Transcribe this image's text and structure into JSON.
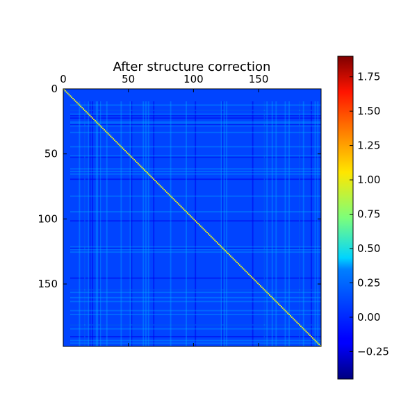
{
  "chart_data": {
    "type": "heatmap",
    "title": "After structure correction",
    "x_ticks": [
      0,
      50,
      100,
      150
    ],
    "y_ticks": [
      0,
      50,
      100,
      150
    ],
    "x_tick_labels": [
      "0",
      "50",
      "100",
      "150"
    ],
    "y_tick_labels": [
      "0",
      "50",
      "100",
      "150"
    ],
    "x_axis_position": "top",
    "xlim": [
      0,
      198
    ],
    "ylim": [
      0,
      198
    ],
    "matrix_size": 198,
    "background_value": 0.0,
    "diagonal_value": 1.0,
    "colormap": "jet",
    "colorbar": {
      "ticks": [
        -0.25,
        0.0,
        0.25,
        0.5,
        0.75,
        1.0,
        1.25,
        1.5,
        1.75
      ],
      "tick_labels": [
        "−0.25",
        "0.00",
        "0.25",
        "0.50",
        "0.75",
        "1.00",
        "1.25",
        "1.50",
        "1.75"
      ],
      "vmin": -0.45,
      "vmax": 1.9,
      "position": "right"
    },
    "highlighted_indices": [
      12,
      16,
      19,
      25,
      26,
      28,
      33,
      44,
      51,
      61,
      63,
      65,
      82,
      94,
      121,
      123,
      125,
      154,
      156,
      160,
      163,
      170,
      173,
      181,
      184,
      193,
      195
    ],
    "highlight_value": 0.25,
    "negative_indices": [
      16,
      20,
      22,
      27,
      52,
      69,
      101,
      122,
      145,
      154,
      181,
      190
    ],
    "negative_value": -0.2,
    "grid": false
  }
}
